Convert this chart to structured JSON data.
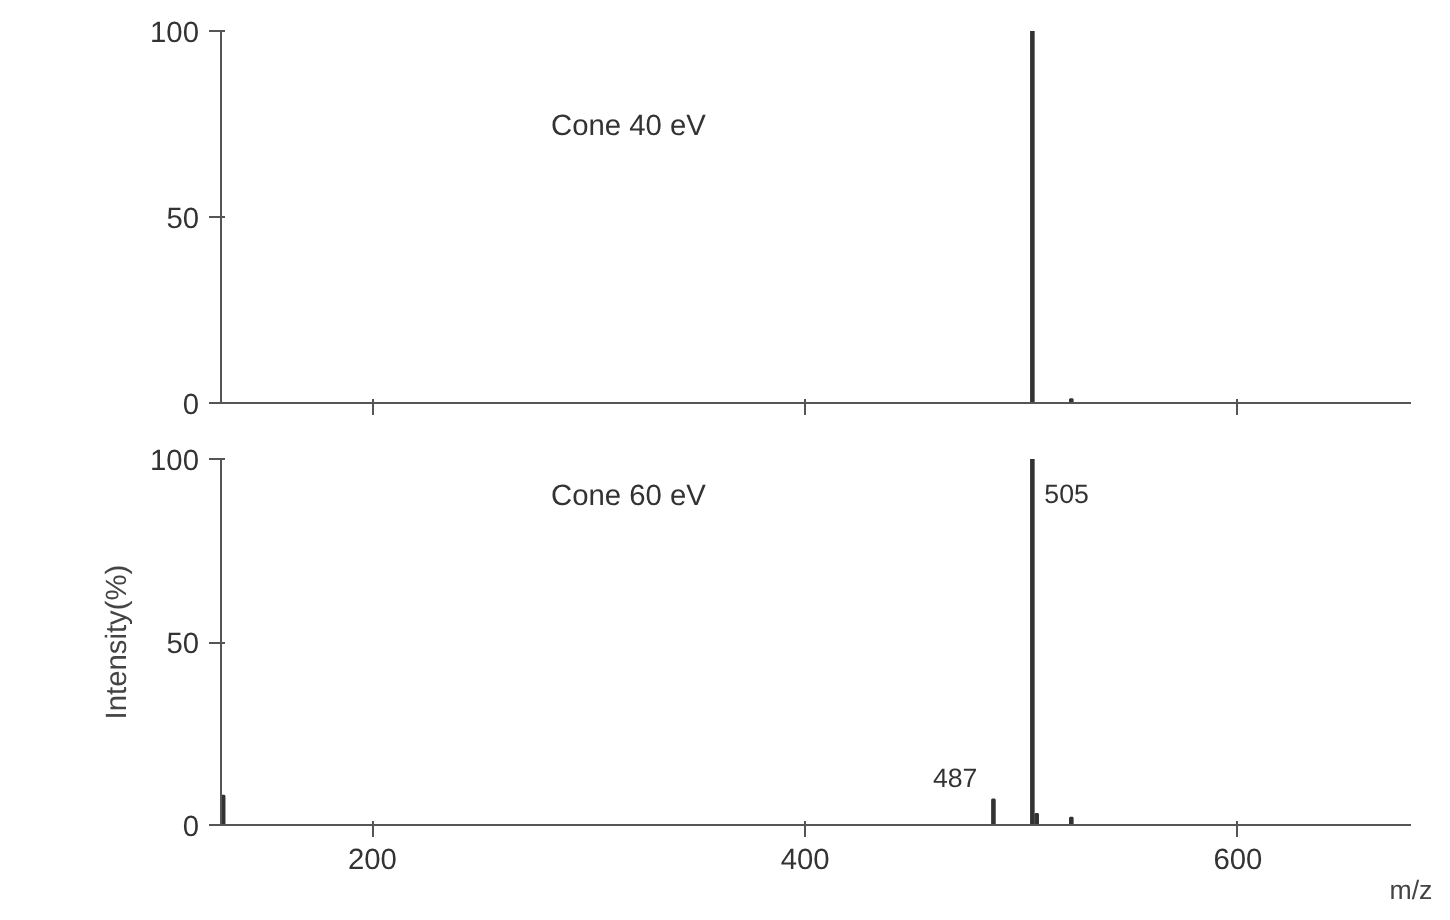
{
  "chart_data": [
    {
      "type": "bar",
      "x": [
        505,
        523
      ],
      "values": [
        100,
        1
      ],
      "color": "#333333",
      "xlim": [
        130,
        680
      ],
      "xticks": [
        200,
        400,
        600
      ],
      "ylim": [
        0,
        100
      ],
      "yticks": [
        0,
        50,
        100
      ],
      "tick_labels": "y",
      "grid": false,
      "annotations": [
        "Cone  40  eV"
      ]
    },
    {
      "type": "bar",
      "x": [
        131,
        487,
        505,
        507,
        523
      ],
      "values": [
        8,
        7,
        100,
        3,
        2
      ],
      "color": "#333333",
      "xlim": [
        130,
        680
      ],
      "xticks": [
        200,
        400,
        600
      ],
      "ylim": [
        0,
        100
      ],
      "yticks": [
        0,
        50,
        100
      ],
      "grid": false,
      "xlabel": "m/z",
      "ylabel": "Intensity(%)",
      "annotations": [
        "Cone  60  eV",
        {
          "text": "487",
          "x": 487,
          "y": 7
        },
        {
          "text": "505",
          "x": 505,
          "y": 100
        }
      ]
    }
  ]
}
